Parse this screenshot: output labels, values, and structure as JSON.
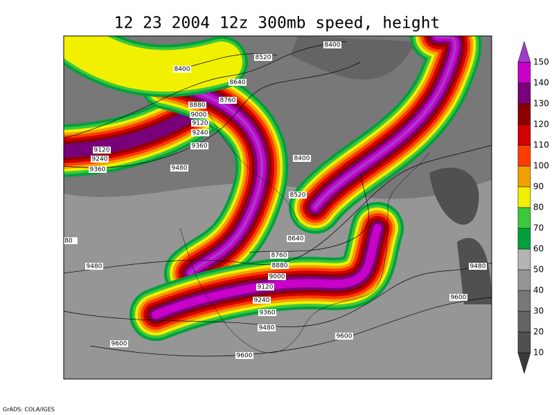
{
  "title": "12 23 2004 12z 300mb speed, height",
  "footer": "GrADS: COLA/IGES",
  "colorbar": {
    "levels": [
      10,
      20,
      30,
      40,
      50,
      60,
      70,
      80,
      90,
      100,
      110,
      120,
      130,
      140,
      150
    ],
    "colors": [
      "#3a3a3a",
      "#505050",
      "#646464",
      "#787878",
      "#969696",
      "#b4b4b4",
      "#00a03c",
      "#3cc83c",
      "#f0f000",
      "#f0a000",
      "#ff3c00",
      "#d20000",
      "#8c0000",
      "#780078",
      "#c800c8",
      "#a03cc8"
    ]
  },
  "contour_labels": [
    "8400",
    "8520",
    "8400",
    "8640",
    "8760",
    "8880",
    "9000",
    "9120",
    "9240",
    "9360",
    "9120",
    "9240",
    "9360",
    "9480",
    "8400",
    "8520",
    "8640",
    "80",
    "8760",
    "8880",
    "9000",
    "9120",
    "9240",
    "9360",
    "9480",
    "9480",
    "9480",
    "9600",
    "9600",
    "9600",
    "9600"
  ]
}
